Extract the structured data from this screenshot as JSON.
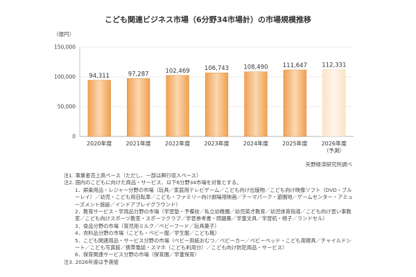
{
  "chart_data": {
    "type": "bar",
    "title": "こども関連ビジネス市場（6分野34市場計）の市場規模推移",
    "ylabel": "（億円）",
    "ylim": [
      0,
      150000
    ],
    "yticks": [
      0,
      50000,
      100000,
      150000
    ],
    "ytick_labels": [
      "0",
      "50,000",
      "100,000",
      "150,000"
    ],
    "categories": [
      "2020年度",
      "2021年度",
      "2022年度",
      "2023年度",
      "2024年度",
      "2025年度",
      "2026年度"
    ],
    "category_sublabels": [
      "",
      "",
      "",
      "",
      "",
      "",
      "（予測）"
    ],
    "values": [
      94311,
      97287,
      102469,
      106743,
      108490,
      111647,
      112331
    ],
    "value_labels": [
      "94,311",
      "97,287",
      "102,469",
      "106,743",
      "108,490",
      "111,647",
      "112,331"
    ],
    "forecast_index": 6,
    "grid": true,
    "colors": {
      "bar": "#f0a050",
      "bar_light": "#fbd8b2",
      "bar_edge": "#e08a38",
      "forecast": "#fcebd6",
      "grid": "#d8d8d8",
      "axis": "#999999"
    }
  },
  "source": "矢野経済研究所調べ",
  "notes": {
    "n1": "注1. 事業者売上高ベース（ただし、一部は興行収入ベース）",
    "n2": "注2. 国内のこどもに向けた商品・サービス、以下6分野34市場を対象とする。",
    "items": [
      "1．娯楽用品・レジャー分野の市場（玩具／家庭用テレビゲーム／こども向け出版物／こども向け映像ソフト（DVD・ブルーレイ）／幼児・こども用自転車／こども・ファミリー向け劇場用映画／テーマパーク・遊園地／ゲームセンター・アミューズメント施設／インドアプレイグラウンド）",
      "2．教育サービス・学用品分野の市場（学習塾・予備校／私立幼稚園／幼児英才教育／幼児体育指導／こども向け習い事教室／こども向けスポーツ教室・スポーツクラブ／学習参考書・問題集／学童文具／学習机・椅子／ランドセル）",
      "3．食品分野の市場（育児用ミルク／ベビーフード／玩具菓子）",
      "4．衣料品分野の市場（こども・ベビー服／学生服／こども靴）",
      "5．こども関連用品・サービス分野の市場（ベビー用紙おむつ／ベビーカー／ベビーベッド・こども用寝具／チャイルドシート／こども写真館／携帯電話・スマホ（こども利用分）／こども向け防犯用品・サービス）",
      "6．保育関連サービス分野の市場（保育園／学童保育）"
    ],
    "n3": "注3. 2026年度は予測値"
  }
}
